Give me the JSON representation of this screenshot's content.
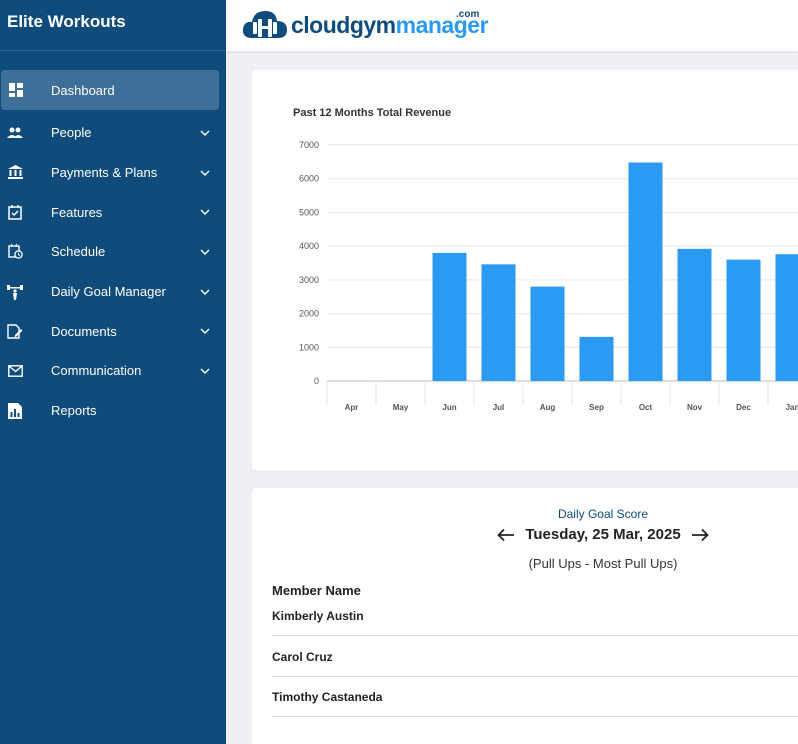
{
  "sidebar": {
    "brand": "Elite Workouts",
    "items": [
      {
        "label": "Dashboard",
        "icon": "dashboard-icon",
        "active": true,
        "expandable": false
      },
      {
        "label": "People",
        "icon": "people-icon",
        "expandable": true
      },
      {
        "label": "Payments & Plans",
        "icon": "bank-icon",
        "expandable": true
      },
      {
        "label": "Features",
        "icon": "calendar-check-icon",
        "expandable": true
      },
      {
        "label": "Schedule",
        "icon": "schedule-icon",
        "expandable": true
      },
      {
        "label": "Daily Goal Manager",
        "icon": "dumbbell-icon",
        "expandable": true
      },
      {
        "label": "Documents",
        "icon": "document-icon",
        "expandable": true
      },
      {
        "label": "Communication",
        "icon": "mail-icon",
        "expandable": true
      },
      {
        "label": "Reports",
        "icon": "reports-icon",
        "expandable": false
      }
    ]
  },
  "header": {
    "logo": {
      "part1": "cloud",
      "part2": "gym",
      "part3": "manager",
      "suffix": ".com"
    }
  },
  "chart_data": {
    "type": "bar",
    "title": "Past 12 Months Total Revenue",
    "categories": [
      "Apr",
      "May",
      "Jun",
      "Jul",
      "Aug",
      "Sep",
      "Oct",
      "Nov",
      "Dec",
      "Jan"
    ],
    "values": [
      0,
      0,
      3800,
      3460,
      2800,
      1310,
      6480,
      3920,
      3600,
      3760
    ],
    "yticks": [
      0,
      1000,
      2000,
      3000,
      4000,
      5000,
      6000,
      7000
    ],
    "ylim": [
      0,
      7000
    ],
    "xlabel": "",
    "ylabel": "",
    "grid": true,
    "color": "#2b9af3"
  },
  "goal": {
    "label": "Daily Goal Score",
    "date": "Tuesday, 25 Mar, 2025",
    "subtitle": "(Pull Ups - Most Pull Ups)",
    "member_header": "Member Name",
    "members": [
      "Kimberly Austin",
      "Carol Cruz",
      "Timothy Castaneda"
    ]
  },
  "colors": {
    "sidebar_bg": "#0f4c7c",
    "accent": "#2b9af3"
  }
}
